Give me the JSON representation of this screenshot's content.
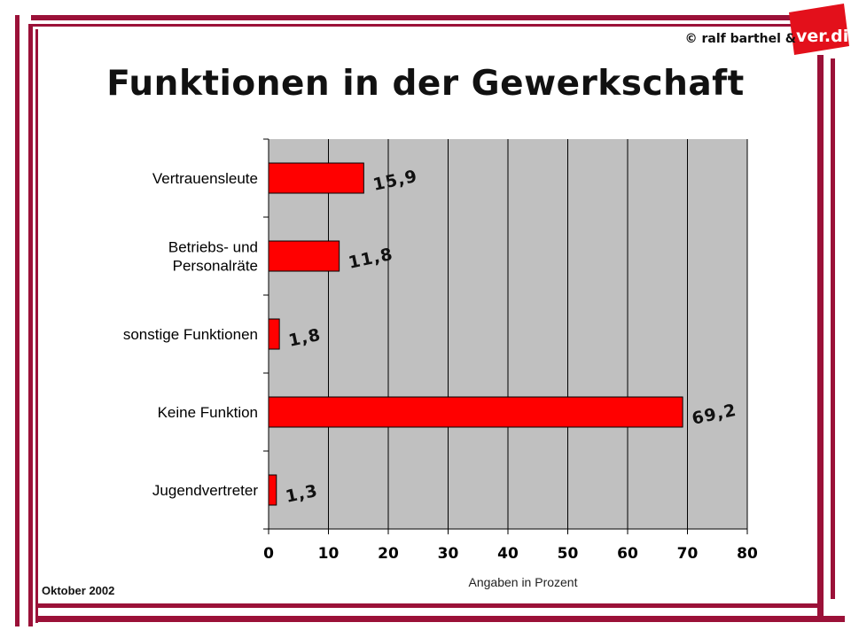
{
  "copyright": "© ralf barthel &",
  "logo_text": "ver.di",
  "date": "Oktober 2002",
  "colors": {
    "frame": "#9b1138",
    "bar": "#ff0000",
    "plot_bg": "#c0c0c0",
    "logo": "#e3101b"
  },
  "chart_data": {
    "type": "bar",
    "orientation": "horizontal",
    "title": "Funktionen in der Gewerkschaft",
    "xlabel": "Angaben in Prozent",
    "ylabel": "",
    "categories": [
      [
        "Vertrauensleute"
      ],
      [
        "Betriebs- und",
        "Personalräte"
      ],
      [
        "sonstige Funktionen"
      ],
      [
        "Keine Funktion"
      ],
      [
        "Jugendvertreter"
      ]
    ],
    "values": [
      15.9,
      11.8,
      1.8,
      69.2,
      1.3
    ],
    "value_labels": [
      "15,9",
      "11,8",
      "1,8",
      "69,2",
      "1,3"
    ],
    "xlim": [
      0,
      80
    ],
    "xticks": [
      0,
      10,
      20,
      30,
      40,
      50,
      60,
      70,
      80
    ],
    "grid": "vertical",
    "legend": "none"
  }
}
